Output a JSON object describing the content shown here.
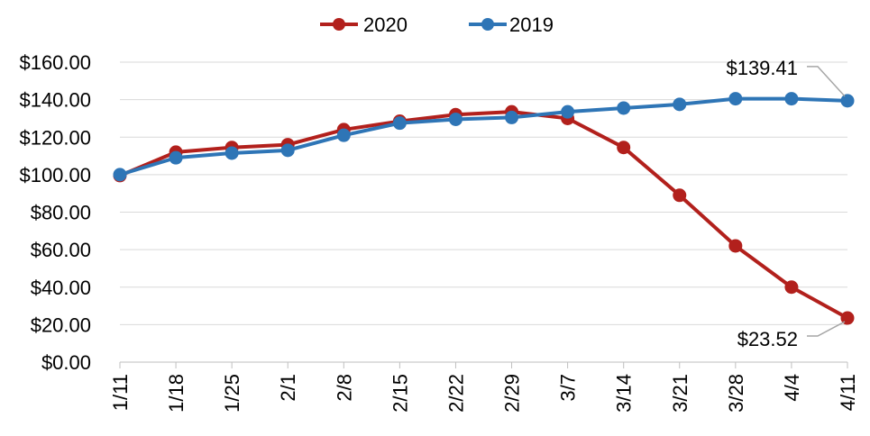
{
  "chart_data": {
    "type": "line",
    "title": "",
    "xlabel": "",
    "ylabel": "",
    "categories": [
      "1/11",
      "1/18",
      "1/25",
      "2/1",
      "2/8",
      "2/15",
      "2/22",
      "2/29",
      "3/7",
      "3/14",
      "3/21",
      "3/28",
      "4/4",
      "4/11"
    ],
    "y_tick_labels": [
      "$0.00",
      "$20.00",
      "$40.00",
      "$60.00",
      "$80.00",
      "$100.00",
      "$120.00",
      "$140.00",
      "$160.00"
    ],
    "ylim": [
      0,
      160
    ],
    "grid": true,
    "legend_position": "top",
    "series": [
      {
        "name": "2020",
        "color": "#b2201c",
        "values": [
          99.5,
          112,
          114.5,
          116,
          124,
          128.5,
          132,
          133.5,
          130,
          114.5,
          89,
          62,
          40,
          23.52
        ]
      },
      {
        "name": "2019",
        "color": "#2e75b6",
        "values": [
          100,
          109,
          111.5,
          113,
          121,
          127.5,
          129.5,
          130.5,
          133.5,
          135.5,
          137.5,
          140.5,
          140.5,
          139.41
        ]
      }
    ],
    "annotations": [
      {
        "text": "$139.41",
        "series": "2019",
        "category": "4/11"
      },
      {
        "text": "$23.52",
        "series": "2020",
        "category": "4/11"
      }
    ]
  }
}
